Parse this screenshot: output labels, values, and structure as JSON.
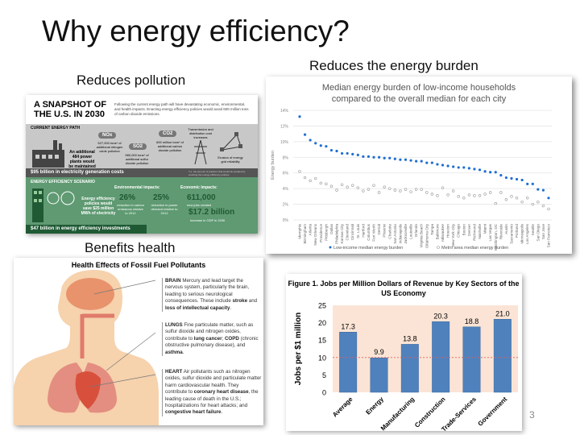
{
  "title": "Why energy efficiency?",
  "captions": {
    "pollution": "Reduces pollution",
    "burden": "Reduces the energy burden",
    "health": "Benefits health"
  },
  "snapshot": {
    "heading": "A SNAPSHOT OF THE U.S. IN 2030",
    "intro": "Following the current energy path will have devastating economic, environmental, and health impacts. Enacting energy efficiency policies would avoid 600 million tons of carbon dioxide emissions.",
    "current_label": "CURRENT ENERGY PATH",
    "plants": "An additional 484 power plants would be maintained",
    "nox": "NOx",
    "nox_text": "527,000 tons* of additional nitrogen oxide pollution",
    "so2": "SO2",
    "so2_text": "980,000 tons* of additional sulfur dioxide pollution",
    "co2": "CO2",
    "co2_text": "600 million tons* of additional carbon dioxide pollution",
    "transmission": "Transmission and distribution cost increases",
    "grid": "Erosion of energy grid reliability",
    "current_cost": "$95 billion in electricity generation costs",
    "footnote": "*i.e. the amount of pollution that would be avoided by enacting the energy efficiency policies",
    "scenario_label": "ENERGY EFFICIENCY SCENARIO",
    "policies": "Energy efficiency policies would save $25 million MWh of electricity",
    "env_label": "Environmental impacts:",
    "econ_label": "Economic impacts:",
    "stat1": "26%",
    "stat1_text": "reduction in carbon emissions relative to 2012",
    "stat2": "25%",
    "stat2_text": "reduction in power demand relative to 2012",
    "stat3": "611,000",
    "stat3_text": "new jobs created",
    "stat4": "$17.2 billion",
    "stat4_text": "increase in GDP in 2030",
    "eff_cost": "$47 billion in energy efficiency investments"
  },
  "health": {
    "title": "Health Effects of Fossil Fuel Pollutants",
    "brain_head": "BRAIN",
    "brain_text": " Mercury and lead target the nervous system, particularly the brain, leading to serious neurological consequences. These include ",
    "brain_b1": "stroke",
    "brain_and": " and ",
    "brain_b2": "loss of intellectual capacity",
    "period": ".",
    "lungs_head": "LUNGS",
    "lungs_text": " Fine particulate matter, such as sulfur dioxide and nitrogen oxides, contribute to ",
    "lungs_b1": "lung cancer",
    "lungs_sep": "; ",
    "lungs_b2": "COPD",
    "lungs_text2": " (chronic obstructive pulmonary disease), and ",
    "lungs_b3": "asthma",
    "heart_head": "HEART",
    "heart_text": " Air pollutants such as nitrogen oxides, sulfur dioxide and particulate matter harm cardiovascular health. They contribute to ",
    "heart_b1": "coronary heart disease",
    "heart_text2": ", the leading cause of death in the U.S.; hospitalizations for heart attacks; and ",
    "heart_b2": "congestive heart failure"
  },
  "page_number": "3",
  "chart_data": [
    {
      "type": "scatter",
      "title": "Median energy burden of low-income households compared to the overall median for each city",
      "ylabel": "Energy burden",
      "ylim": [
        0,
        14
      ],
      "yticks": [
        "0%",
        "2%",
        "4%",
        "6%",
        "8%",
        "10%",
        "12%",
        "14%"
      ],
      "grid": true,
      "legend_position": "bottom",
      "categories": [
        "Memphis",
        "Birmingham",
        "Atlanta",
        "New Orleans",
        "Providence",
        "Pittsburgh",
        "Dallas",
        "Philadelphia",
        "Kansas City",
        "Cleveland",
        "Cincinnati",
        "St. Louis",
        "Hartford",
        "Columbus",
        "Fort Worth",
        "Detroit",
        "Phoenix",
        "Charlotte",
        "San Antonio",
        "Indianapolis",
        "Jacksonville",
        "Louisville",
        "Orlando",
        "Virginia Beach",
        "Oklahoma City",
        "Tampa",
        "Baltimore",
        "Milwaukee",
        "Houston",
        "New York City",
        "Chicago",
        "Boston",
        "Denver",
        "Richmond",
        "Nashville",
        "Miami",
        "Las Vegas",
        "Washington, DC",
        "Riverside",
        "Austin",
        "Sacramento",
        "Portland",
        "Minneapolis",
        "Los Angeles",
        "Seattle",
        "San Diego",
        "San Jose",
        "San Francisco"
      ],
      "series": [
        {
          "name": "Low-income median energy burden",
          "color": "#1f6fd1",
          "values": [
            13.2,
            10.9,
            10.2,
            9.8,
            9.5,
            9.4,
            8.9,
            8.8,
            8.5,
            8.5,
            8.4,
            8.3,
            8.1,
            8.1,
            8.0,
            8.0,
            7.9,
            7.9,
            7.8,
            7.7,
            7.7,
            7.6,
            7.5,
            7.5,
            7.3,
            7.3,
            7.1,
            7.0,
            6.9,
            6.8,
            6.7,
            6.7,
            6.6,
            6.5,
            6.4,
            6.2,
            6.1,
            6.1,
            5.7,
            5.4,
            5.3,
            5.2,
            5.1,
            4.6,
            4.6,
            3.9,
            3.8,
            2.8
          ]
        },
        {
          "name": "Metro area median energy burden",
          "color": "#9a9a9a",
          "values": [
            6.2,
            5.4,
            5.0,
            5.3,
            4.7,
            4.6,
            4.3,
            3.8,
            4.5,
            4.2,
            4.4,
            4.1,
            3.7,
            3.9,
            4.4,
            3.5,
            4.2,
            4.0,
            3.8,
            3.7,
            3.9,
            3.6,
            3.9,
            3.9,
            3.5,
            3.3,
            3.1,
            4.1,
            3.2,
            3.7,
            3.0,
            2.8,
            3.2,
            3.1,
            3.1,
            3.3,
            3.5,
            2.1,
            3.5,
            2.6,
            3.0,
            2.8,
            2.3,
            2.8,
            2.0,
            2.3,
            1.8,
            1.4
          ]
        }
      ]
    },
    {
      "type": "bar",
      "title": "Figure 1. Jobs per Million Dollars of Revenue by Key Sectors of the US Economy",
      "ylabel": "Jobs per $1 million",
      "ylim": [
        0,
        25
      ],
      "yticks": [
        "0",
        "5",
        "10",
        "15",
        "20",
        "25"
      ],
      "reference_line": 10,
      "categories": [
        "Average",
        "Energy",
        "Manufacturing",
        "Construction",
        "Trade-Services",
        "Government"
      ],
      "values": [
        17.3,
        9.9,
        13.8,
        20.3,
        18.8,
        21.0
      ],
      "labels": [
        "17.3",
        "9.9",
        "13.8",
        "20.3",
        "18.8",
        "21.0"
      ],
      "bar_color": "#4f81bd",
      "background": "#fbe4d5"
    }
  ]
}
